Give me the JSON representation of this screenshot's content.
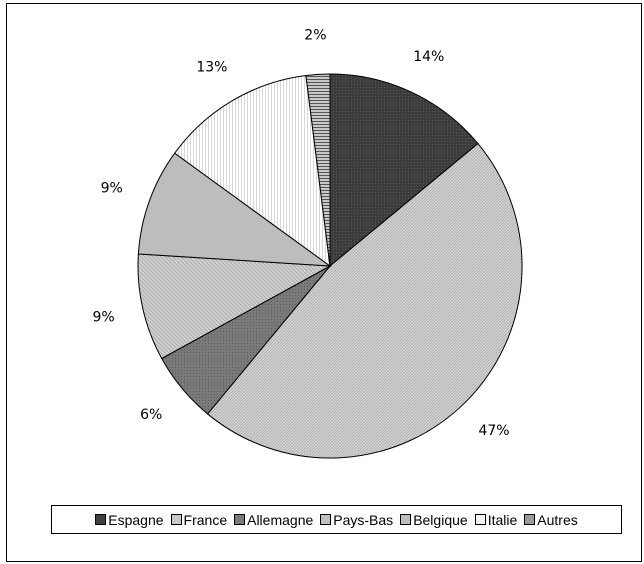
{
  "chart_data": {
    "type": "pie",
    "slices": [
      {
        "label": "Espagne",
        "value": 14,
        "display": "14%",
        "color": "#404040",
        "pattern": "dots-dark"
      },
      {
        "label": "France",
        "value": 47,
        "display": "47%",
        "color": "#c8c8c8",
        "pattern": "diag-fine"
      },
      {
        "label": "Allemagne",
        "value": 6,
        "display": "6%",
        "color": "#7a7a7a",
        "pattern": "dots-mid"
      },
      {
        "label": "Pays-Bas",
        "value": 9,
        "display": "9%",
        "color": "#c0c0c0",
        "pattern": "diag-light"
      },
      {
        "label": "Belgique",
        "value": 9,
        "display": "9%",
        "color": "#bdbdbd",
        "pattern": "solid"
      },
      {
        "label": "Italie",
        "value": 13,
        "display": "13%",
        "color": "#f4f4f4",
        "pattern": "vertical"
      },
      {
        "label": "Autres",
        "value": 2,
        "display": "2%",
        "color": "#9a9a9a",
        "pattern": "horizontal"
      }
    ],
    "legend_position": "bottom",
    "start_angle_deg": 0,
    "direction": "clockwise"
  }
}
